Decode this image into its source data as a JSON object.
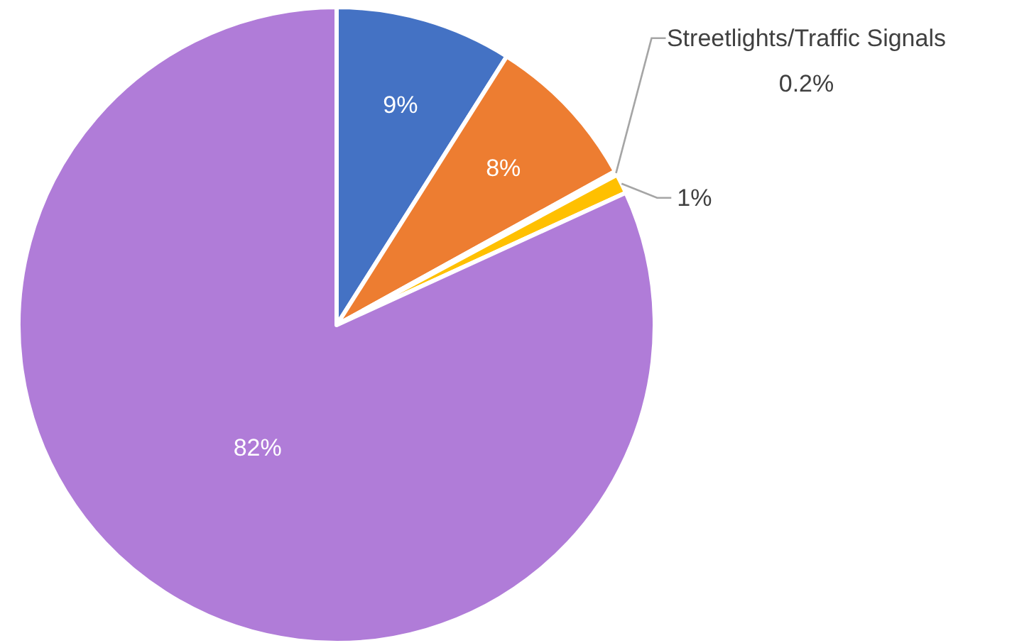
{
  "chart_data": {
    "type": "pie",
    "categories": [
      null,
      null,
      "Streetlights/Traffic Signals",
      null,
      null
    ],
    "values": [
      9,
      8,
      0.2,
      1,
      82
    ],
    "colors": [
      "#4472c4",
      "#ed7d31",
      "#a5a5a5",
      "#ffc000",
      "#b07cd8"
    ],
    "value_labels": [
      "9%",
      "8%",
      "0.2%",
      "1%",
      "82%"
    ]
  }
}
